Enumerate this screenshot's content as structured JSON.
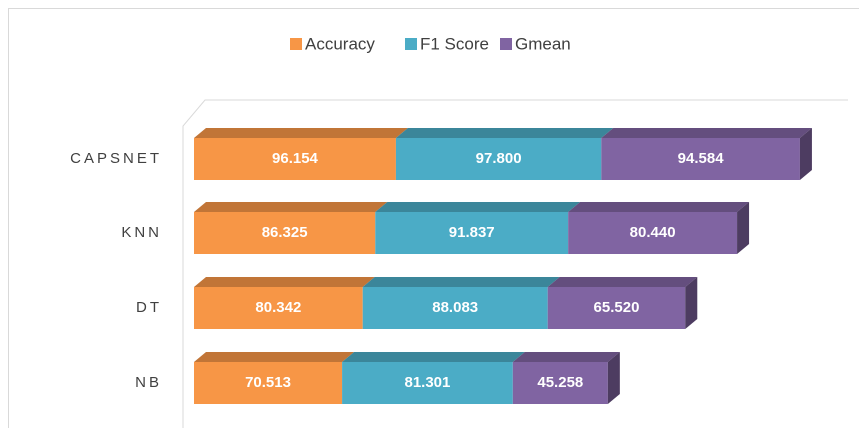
{
  "chart_data": {
    "type": "bar",
    "orientation": "horizontal",
    "stacked": true,
    "three_d": true,
    "categories": [
      "CAPSNET",
      "KNN",
      "DT",
      "NB"
    ],
    "series": [
      {
        "name": "Accuracy",
        "color": "#f79646",
        "values": [
          96.154,
          86.325,
          80.342,
          70.513
        ],
        "value_labels": [
          "96.154",
          "86.325",
          "80.342",
          "70.513"
        ]
      },
      {
        "name": "F1 Score",
        "color": "#4bacc6",
        "values": [
          97.8,
          91.837,
          88.083,
          81.301
        ],
        "value_labels": [
          "97.800",
          "91.837",
          "88.083",
          "81.301"
        ]
      },
      {
        "name": "Gmean",
        "color": "#8064a2",
        "values": [
          94.584,
          80.44,
          65.52,
          45.258
        ],
        "value_labels": [
          "94.584",
          "80.440",
          "65.520",
          "45.258"
        ]
      }
    ],
    "legend": "top"
  }
}
